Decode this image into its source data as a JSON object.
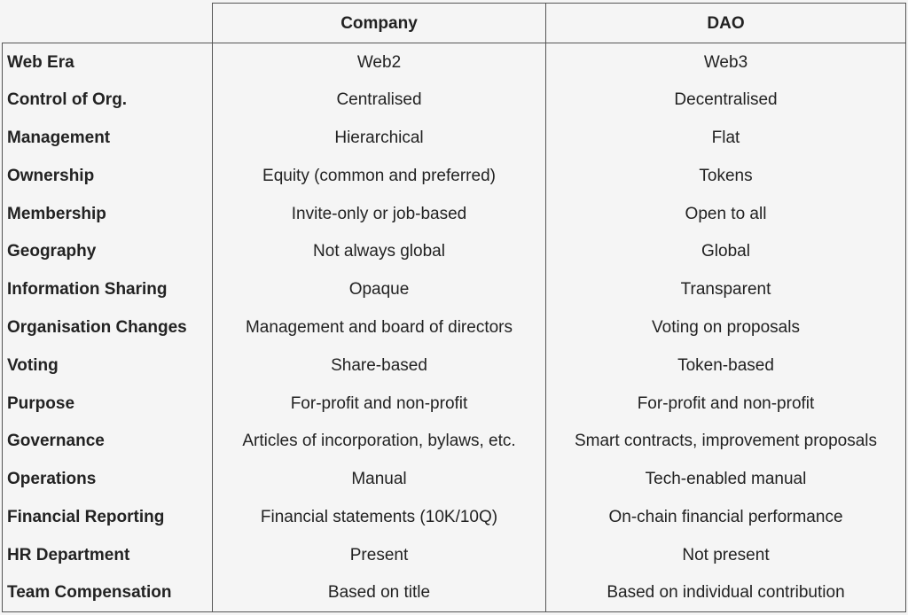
{
  "header": {
    "corner": "",
    "col1": "Company",
    "col2": "DAO"
  },
  "rows": [
    {
      "label": "Web Era",
      "company": "Web2",
      "dao": "Web3"
    },
    {
      "label": "Control of Org.",
      "company": "Centralised",
      "dao": "Decentralised"
    },
    {
      "label": "Management",
      "company": "Hierarchical",
      "dao": "Flat"
    },
    {
      "label": "Ownership",
      "company": "Equity (common and preferred)",
      "dao": "Tokens"
    },
    {
      "label": "Membership",
      "company": "Invite-only or job-based",
      "dao": "Open to all"
    },
    {
      "label": "Geography",
      "company": "Not always global",
      "dao": "Global"
    },
    {
      "label": "Information Sharing",
      "company": "Opaque",
      "dao": "Transparent"
    },
    {
      "label": "Organisation Changes",
      "company": "Management and board of directors",
      "dao": "Voting on proposals"
    },
    {
      "label": "Voting",
      "company": "Share-based",
      "dao": "Token-based"
    },
    {
      "label": "Purpose",
      "company": "For-profit and non-profit",
      "dao": "For-profit and non-profit"
    },
    {
      "label": "Governance",
      "company": "Articles of incorporation, bylaws, etc.",
      "dao": "Smart contracts, improvement proposals"
    },
    {
      "label": "Operations",
      "company": "Manual",
      "dao": "Tech-enabled manual"
    },
    {
      "label": "Financial Reporting",
      "company": "Financial statements (10K/10Q)",
      "dao": "On-chain financial performance"
    },
    {
      "label": "HR Department",
      "company": "Present",
      "dao": "Not present"
    },
    {
      "label": "Team Compensation",
      "company": "Based on title",
      "dao": "Based on individual contribution"
    }
  ]
}
